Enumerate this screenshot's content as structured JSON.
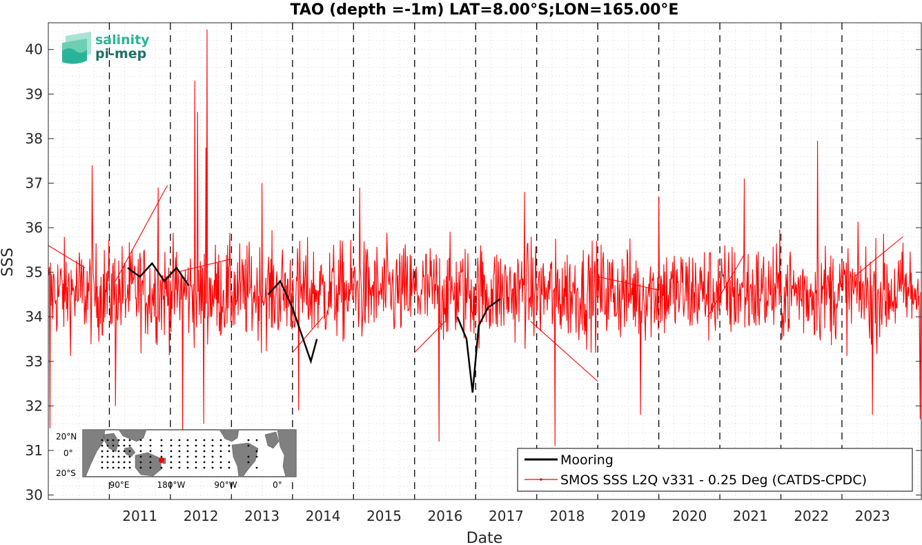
{
  "logo": {
    "line1": "salinity",
    "line2": "pi-mep",
    "colors": {
      "line1": "#2bb39a",
      "line2": "#1f6f66"
    }
  },
  "inset_map": {
    "lat_labels": [
      "20°N",
      "0°",
      "20°S"
    ],
    "lon_labels": [
      "90°E",
      "180°W",
      "90°W",
      "0°"
    ],
    "colors": {
      "land": "#808080",
      "ocean": "#ffffff",
      "mooring": "#000000",
      "selected": "#ff0000"
    }
  },
  "chart_data": {
    "type": "line",
    "title": "TAO (depth =-1m) LAT=8.00°S;LON=165.00°E",
    "xlabel": "Date",
    "ylabel": "SSS",
    "xlim": [
      2010.0,
      2024.3
    ],
    "ylim": [
      29.9,
      40.6
    ],
    "yticks": [
      30,
      31,
      32,
      33,
      34,
      35,
      36,
      37,
      38,
      39,
      40
    ],
    "xticks": [
      2011,
      2012,
      2013,
      2014,
      2015,
      2016,
      2017,
      2018,
      2019,
      2020,
      2021,
      2022,
      2023
    ],
    "year_boundaries_dashed": [
      2011,
      2012,
      2013,
      2014,
      2015,
      2016,
      2017,
      2018,
      2019,
      2020,
      2021,
      2022,
      2023
    ],
    "grid": true,
    "legend_position": "bottom-right",
    "series": [
      {
        "name": "Mooring",
        "color": "#000000",
        "segments": [
          {
            "x": [
              2011.3,
              2011.5,
              2011.7,
              2011.9,
              2012.1,
              2012.3
            ],
            "y": [
              35.1,
              34.9,
              35.2,
              34.8,
              35.1,
              34.7
            ]
          },
          {
            "x": [
              2013.6,
              2013.8,
              2014.0,
              2014.15,
              2014.3,
              2014.4
            ],
            "y": [
              34.5,
              34.8,
              34.2,
              33.6,
              33.0,
              33.5
            ]
          },
          {
            "x": [
              2016.7,
              2016.85,
              2016.95,
              2017.05,
              2017.2,
              2017.4
            ],
            "y": [
              34.0,
              33.5,
              32.3,
              33.8,
              34.2,
              34.4
            ]
          }
        ]
      },
      {
        "name": "SMOS SSS L2Q v331 - 0.25 Deg (CATDS-CPDC)",
        "color": "#ff0000",
        "noise_points_per_year": 110,
        "spikes": [
          {
            "x": 2010.72,
            "y": 37.4
          },
          {
            "x": 2011.8,
            "y": 36.9
          },
          {
            "x": 2012.4,
            "y": 39.3
          },
          {
            "x": 2012.45,
            "y": 38.6
          },
          {
            "x": 2012.6,
            "y": 40.45
          },
          {
            "x": 2012.58,
            "y": 37.8
          },
          {
            "x": 2012.2,
            "y": 31.4
          },
          {
            "x": 2012.55,
            "y": 31.6
          },
          {
            "x": 2013.5,
            "y": 37.0
          },
          {
            "x": 2015.1,
            "y": 36.9
          },
          {
            "x": 2016.4,
            "y": 31.2
          },
          {
            "x": 2017.8,
            "y": 36.8
          },
          {
            "x": 2018.3,
            "y": 31.1
          },
          {
            "x": 2019.7,
            "y": 31.8
          },
          {
            "x": 2020.0,
            "y": 36.7
          },
          {
            "x": 2021.4,
            "y": 37.1
          },
          {
            "x": 2022.6,
            "y": 37.95
          },
          {
            "x": 2023.5,
            "y": 31.8
          },
          {
            "x": 2010.03,
            "y": 31.5
          },
          {
            "x": 2024.28,
            "y": 31.7
          },
          {
            "x": 2011.1,
            "y": 32.0
          },
          {
            "x": 2014.1,
            "y": 31.9
          }
        ],
        "gap_lines": [
          {
            "x": [
              2010.0,
              2010.6
            ],
            "y": [
              35.6,
              35.1
            ]
          },
          {
            "x": [
              2011.1,
              2011.95
            ],
            "y": [
              34.8,
              36.95
            ]
          },
          {
            "x": [
              2012.1,
              2013.0
            ],
            "y": [
              35.0,
              35.3
            ]
          },
          {
            "x": [
              2014.0,
              2014.5
            ],
            "y": [
              33.2,
              34.0
            ]
          },
          {
            "x": [
              2016.0,
              2016.5
            ],
            "y": [
              33.2,
              33.9
            ]
          },
          {
            "x": [
              2017.9,
              2019.0
            ],
            "y": [
              33.9,
              32.55
            ]
          },
          {
            "x": [
              2019.0,
              2020.0
            ],
            "y": [
              34.9,
              34.6
            ]
          },
          {
            "x": [
              2020.8,
              2021.4
            ],
            "y": [
              34.0,
              35.4
            ]
          },
          {
            "x": [
              2023.2,
              2024.0
            ],
            "y": [
              34.9,
              35.8
            ]
          }
        ]
      }
    ]
  }
}
